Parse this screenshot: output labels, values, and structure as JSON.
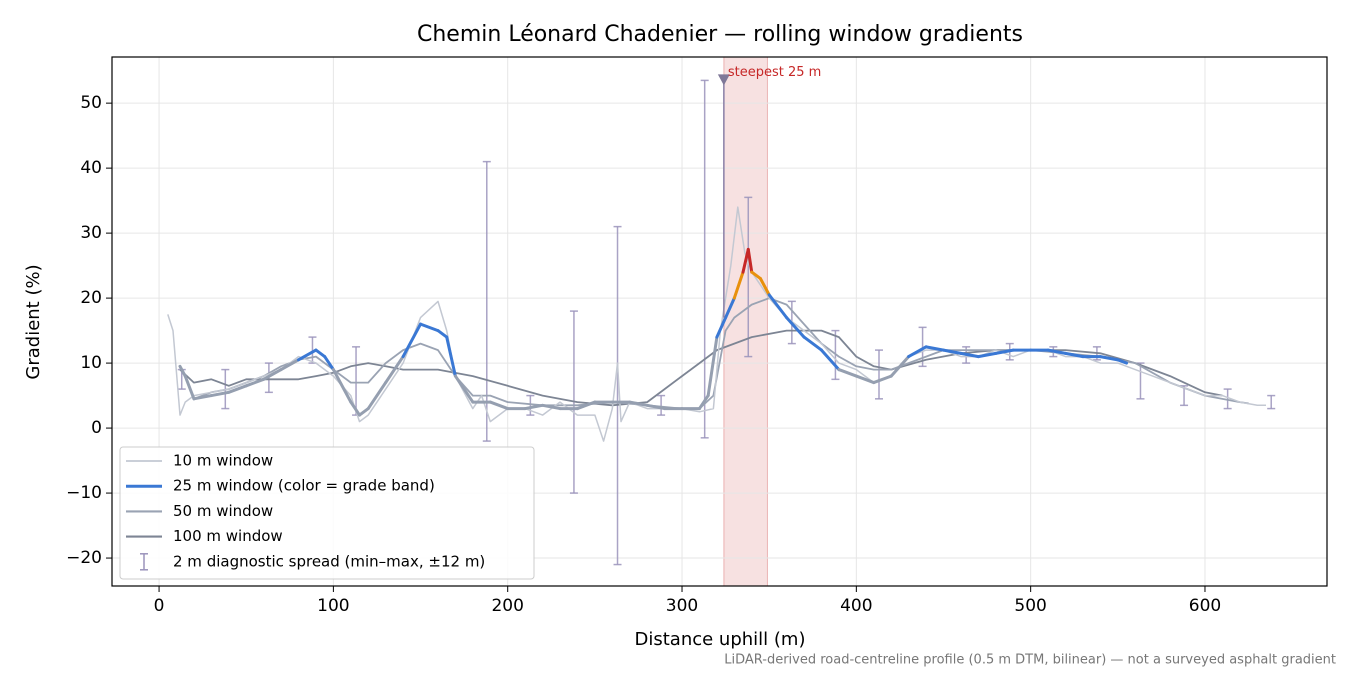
{
  "chart_data": {
    "type": "line",
    "title": "Chemin Léonard Chadenier — rolling window gradients",
    "x_label": "Distance uphill (m)",
    "y_label": "Gradient (%)",
    "footnote": "LiDAR-derived road-centreline profile (0.5 m DTM, bilinear) — not a surveyed asphalt gradient",
    "xlim": [
      -27,
      670
    ],
    "ylim": [
      -24.3,
      57.1
    ],
    "xticks": [
      0,
      100,
      200,
      300,
      400,
      500,
      600
    ],
    "yticks": [
      {
        "value": -20,
        "label": "−20"
      },
      {
        "value": -10,
        "label": "−10"
      },
      0,
      10,
      20,
      30,
      40,
      50
    ],
    "grid": true,
    "legend": "lower left",
    "series": [
      {
        "name": "10 m window",
        "color": "#c3c8d2",
        "x": [
          5,
          8,
          12,
          15,
          20,
          30,
          40,
          50,
          60,
          70,
          80,
          90,
          100,
          110,
          115,
          120,
          130,
          140,
          150,
          160,
          165,
          170,
          180,
          185,
          190,
          200,
          210,
          220,
          230,
          240,
          250,
          255,
          260,
          263,
          265,
          270,
          280,
          290,
          300,
          310,
          318,
          322,
          328,
          332,
          336,
          340,
          345,
          350,
          360,
          370,
          380,
          390,
          400,
          410,
          420,
          430,
          440,
          450,
          460,
          470,
          480,
          490,
          500,
          510,
          520,
          530,
          540,
          550,
          560,
          570,
          580,
          590,
          600,
          610,
          620,
          630,
          635
        ],
        "values": [
          17.5,
          15,
          2,
          4,
          5,
          5.5,
          6,
          7,
          8,
          9,
          11,
          10,
          8,
          5,
          1,
          2,
          6,
          10,
          17,
          19.5,
          15,
          8,
          3,
          5,
          1,
          3,
          3,
          2,
          4,
          2,
          2,
          -2,
          3,
          10,
          1,
          4,
          3,
          3,
          3,
          2.5,
          3,
          15,
          25,
          34,
          27,
          24,
          22,
          20,
          17,
          15,
          13,
          10,
          9,
          7,
          8,
          11,
          12,
          12,
          11,
          11,
          12,
          11,
          12,
          12,
          11,
          11,
          10,
          10,
          9,
          8,
          7,
          6,
          5,
          5,
          4,
          3.5,
          3.5
        ]
      },
      {
        "name": "25 m window (color = grade band)",
        "color": "#3a78d4",
        "band_limits": [
          10,
          20,
          25
        ],
        "band_colors": [
          "#959fb0",
          "#3a78d4",
          "#e8900c",
          "#c62828"
        ],
        "x": [
          12,
          15,
          20,
          30,
          40,
          50,
          60,
          70,
          80,
          90,
          95,
          100,
          110,
          115,
          120,
          130,
          140,
          150,
          160,
          165,
          170,
          180,
          190,
          200,
          210,
          220,
          230,
          240,
          250,
          260,
          270,
          280,
          290,
          300,
          310,
          315,
          320,
          325,
          330,
          335,
          338,
          340,
          345,
          350,
          360,
          370,
          380,
          390,
          400,
          410,
          420,
          430,
          440,
          450,
          460,
          470,
          480,
          490,
          500,
          510,
          520,
          530,
          540,
          550,
          555
        ],
        "values": [
          9.5,
          8,
          4.5,
          5,
          5.5,
          6.5,
          7.5,
          9,
          10.5,
          12,
          11,
          9,
          4,
          2,
          3,
          7,
          11,
          16,
          15,
          14,
          8,
          4,
          4,
          3,
          3,
          3.5,
          3,
          3,
          4,
          4,
          4,
          3.5,
          3,
          3,
          3,
          5,
          14,
          17,
          20,
          24,
          27.5,
          24,
          23,
          20.5,
          17,
          14,
          12,
          9,
          8,
          7,
          8,
          11,
          12.5,
          12,
          11.5,
          11,
          11.5,
          12,
          12,
          12,
          11.5,
          11,
          11,
          10.5,
          10
        ]
      },
      {
        "name": "50 m window",
        "color": "#9aa3b3",
        "x": [
          20,
          30,
          40,
          50,
          60,
          70,
          80,
          90,
          100,
          110,
          120,
          130,
          140,
          150,
          160,
          170,
          180,
          190,
          200,
          220,
          240,
          260,
          280,
          300,
          310,
          318,
          325,
          330,
          340,
          350,
          360,
          370,
          380,
          390,
          400,
          410,
          420,
          430,
          440,
          450,
          460,
          470,
          480,
          500,
          520,
          540,
          560,
          580,
          600,
          620,
          625
        ],
        "values": [
          4.5,
          5.5,
          6,
          7,
          8,
          9.5,
          10.5,
          11,
          9,
          7,
          7,
          10,
          12,
          13,
          12,
          8,
          5,
          5,
          4,
          3.5,
          3.5,
          4,
          3.5,
          3,
          3,
          5,
          15,
          17,
          19,
          20,
          19,
          16,
          13,
          11,
          9.5,
          9,
          9,
          10,
          11,
          12,
          12,
          12,
          12,
          12,
          11.5,
          11,
          10,
          7,
          5,
          4,
          3.8
        ]
      },
      {
        "name": "100 m window",
        "color": "#7d8594",
        "x": [
          12,
          20,
          30,
          40,
          50,
          60,
          70,
          80,
          90,
          100,
          110,
          120,
          130,
          140,
          160,
          180,
          200,
          220,
          240,
          260,
          280,
          290,
          300,
          310,
          320,
          340,
          360,
          380,
          390,
          400,
          410,
          420,
          440,
          460,
          480,
          500,
          520,
          540,
          560,
          580,
          600,
          610
        ],
        "values": [
          9,
          7,
          7.5,
          6.5,
          7.5,
          7.5,
          7.5,
          7.5,
          8,
          8.5,
          9.5,
          10,
          9.5,
          9,
          9,
          8,
          6.5,
          5,
          4,
          3.5,
          4,
          6,
          8,
          10,
          12,
          14,
          15,
          15,
          14,
          11,
          9.5,
          9,
          10.5,
          11.5,
          12,
          12,
          12,
          11.5,
          10,
          8,
          5.5,
          5
        ]
      }
    ],
    "error_bars": {
      "name": "2 m diagnostic spread (min–max, ±12 m)",
      "color": "#9a93bb",
      "x": [
        13,
        38,
        63,
        88,
        113,
        188,
        213,
        238,
        263,
        288,
        313,
        338,
        363,
        388,
        413,
        438,
        463,
        488,
        513,
        538,
        563,
        588,
        613,
        638
      ],
      "lo": [
        6,
        3,
        5.5,
        10,
        2,
        -2,
        2,
        -10,
        -21,
        2,
        -1.5,
        11,
        13,
        7.5,
        4.5,
        9.5,
        10,
        10.5,
        11,
        10.5,
        4.5,
        3.5,
        3,
        3
      ],
      "hi": [
        9,
        9,
        10,
        14,
        12.5,
        41,
        5,
        18,
        31,
        5,
        53.5,
        35.5,
        19.5,
        15,
        12,
        15.5,
        12.5,
        13,
        12.5,
        12.5,
        10,
        6.5,
        6,
        5
      ]
    },
    "highlight": {
      "label": "steepest 25 m",
      "from": 324,
      "to": 349,
      "marker_y": 53.5,
      "color": "#c62828"
    }
  }
}
